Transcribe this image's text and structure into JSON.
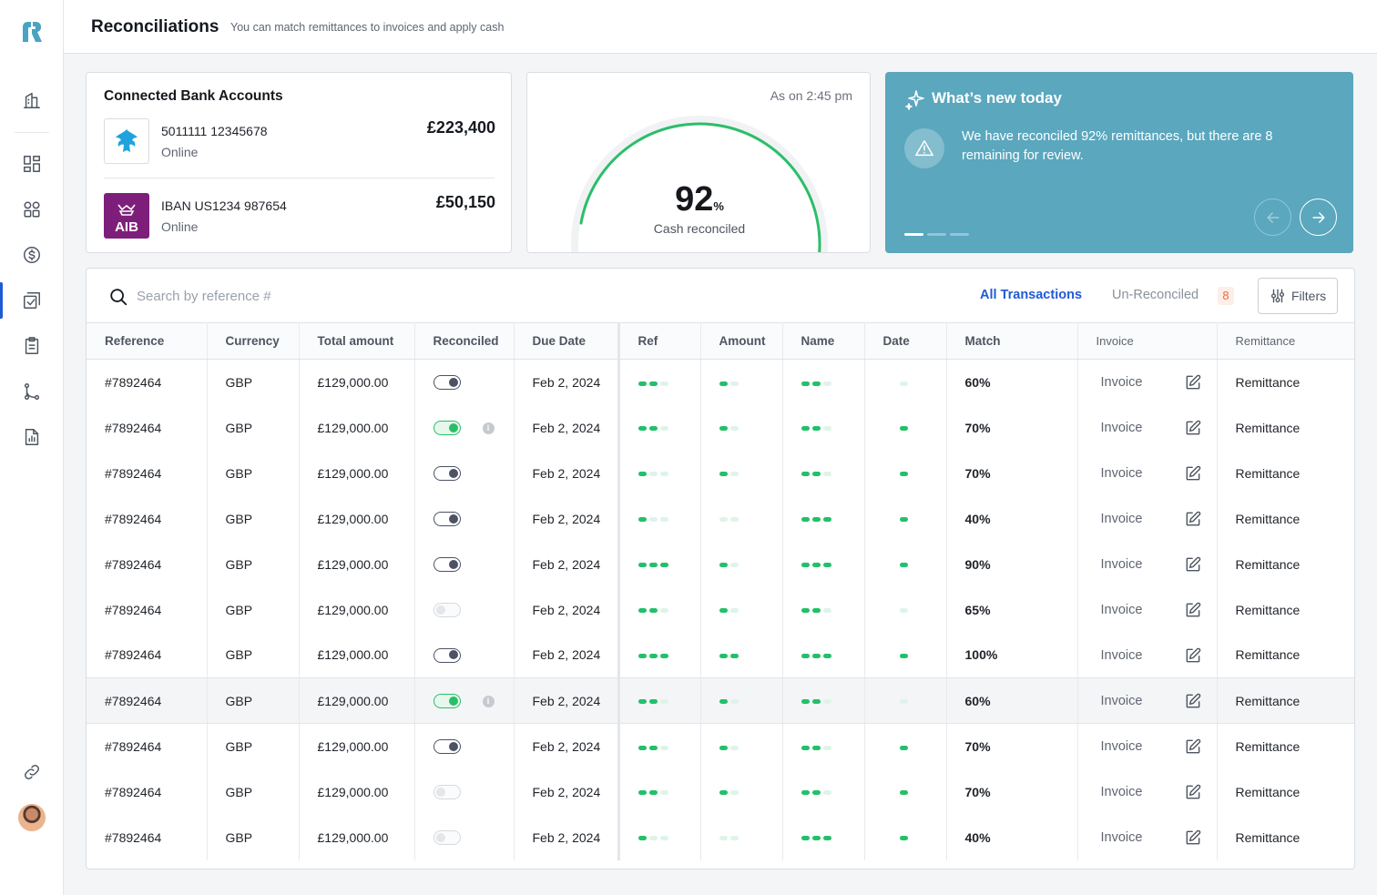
{
  "header": {
    "title": "Reconciliations",
    "subtitle": "You can match remittances to invoices and apply cash"
  },
  "sidebar": {
    "items": [
      {
        "icon": "building-icon",
        "active": false
      },
      {
        "icon": "dashboard-icon",
        "active": false
      },
      {
        "icon": "apps-icon",
        "active": false
      },
      {
        "icon": "dollar-circle-icon",
        "active": false
      },
      {
        "icon": "reconcile-icon",
        "active": true
      },
      {
        "icon": "clipboard-icon",
        "active": false
      },
      {
        "icon": "workflow-icon",
        "active": false
      },
      {
        "icon": "report-icon",
        "active": false
      },
      {
        "icon": "link-icon",
        "active": false
      }
    ]
  },
  "bank_accounts": {
    "title": "Connected Bank Accounts",
    "accounts": [
      {
        "logo": "barclays-logo",
        "number": "5011111 12345678",
        "status": "Online",
        "amount": "£223,400"
      },
      {
        "logo": "aib-logo",
        "logo_text": "AIB",
        "number": "IBAN US1234 987654",
        "status": "Online",
        "amount": "£50,150"
      }
    ]
  },
  "gauge": {
    "as_of": "As on 2:45 pm",
    "value": "92",
    "unit": "%",
    "label": "Cash reconciled",
    "fraction": 0.92,
    "color": "#2bbe69"
  },
  "news": {
    "title": "What’s new today",
    "text": "We have reconciled 92% remittances, but there are 8 remaining for review.",
    "slides": 3,
    "active_slide": 0,
    "background": "#5aa7be"
  },
  "table": {
    "search_placeholder": "Search by reference #",
    "tabs": {
      "all": "All Transactions",
      "unreconciled": "Un-Reconciled",
      "unreconciled_count": "8"
    },
    "filters_label": "Filters",
    "columns": [
      "Reference",
      "Currency",
      "Total amount",
      "Reconciled",
      "Due Date",
      "Ref",
      "Amount",
      "Name",
      "Date",
      "Match",
      "Invoice",
      "Remittance"
    ],
    "rows": [
      {
        "ref": "#7892464",
        "currency": "GBP",
        "total": "£129,000.00",
        "reconciled": "off",
        "info": false,
        "due": "Feb 2, 2024",
        "m_ref": [
          1,
          1,
          0
        ],
        "m_amount": [
          1,
          0
        ],
        "m_name": [
          1,
          1,
          0
        ],
        "m_date": [
          0
        ],
        "match": "60%",
        "invoice": "Invoice",
        "remittance": "Remittance",
        "highlight": false
      },
      {
        "ref": "#7892464",
        "currency": "GBP",
        "total": "£129,000.00",
        "reconciled": "on",
        "info": true,
        "due": "Feb 2, 2024",
        "m_ref": [
          1,
          1,
          0
        ],
        "m_amount": [
          1,
          0
        ],
        "m_name": [
          1,
          1,
          0
        ],
        "m_date": [
          1
        ],
        "match": "70%",
        "invoice": "Invoice",
        "remittance": "Remittance",
        "highlight": false
      },
      {
        "ref": "#7892464",
        "currency": "GBP",
        "total": "£129,000.00",
        "reconciled": "off",
        "info": false,
        "due": "Feb 2, 2024",
        "m_ref": [
          1,
          0,
          0
        ],
        "m_amount": [
          1,
          0
        ],
        "m_name": [
          1,
          1,
          0
        ],
        "m_date": [
          1
        ],
        "match": "70%",
        "invoice": "Invoice",
        "remittance": "Remittance",
        "highlight": false
      },
      {
        "ref": "#7892464",
        "currency": "GBP",
        "total": "£129,000.00",
        "reconciled": "off",
        "info": false,
        "due": "Feb 2, 2024",
        "m_ref": [
          1,
          0,
          0
        ],
        "m_amount": [
          0,
          0
        ],
        "m_name": [
          1,
          1,
          1
        ],
        "m_date": [
          1
        ],
        "match": "40%",
        "invoice": "Invoice",
        "remittance": "Remittance",
        "highlight": false
      },
      {
        "ref": "#7892464",
        "currency": "GBP",
        "total": "£129,000.00",
        "reconciled": "off",
        "info": false,
        "due": "Feb 2, 2024",
        "m_ref": [
          1,
          1,
          1
        ],
        "m_amount": [
          1,
          0
        ],
        "m_name": [
          1,
          1,
          1
        ],
        "m_date": [
          1
        ],
        "match": "90%",
        "invoice": "Invoice",
        "remittance": "Remittance",
        "highlight": false
      },
      {
        "ref": "#7892464",
        "currency": "GBP",
        "total": "£129,000.00",
        "reconciled": "disabled",
        "info": false,
        "due": "Feb 2, 2024",
        "m_ref": [
          1,
          1,
          0
        ],
        "m_amount": [
          1,
          0
        ],
        "m_name": [
          1,
          1,
          0
        ],
        "m_date": [
          0
        ],
        "match": "65%",
        "invoice": "Invoice",
        "remittance": "Remittance",
        "highlight": false
      },
      {
        "ref": "#7892464",
        "currency": "GBP",
        "total": "£129,000.00",
        "reconciled": "off",
        "info": false,
        "due": "Feb 2, 2024",
        "m_ref": [
          1,
          1,
          1
        ],
        "m_amount": [
          1,
          1
        ],
        "m_name": [
          1,
          1,
          1
        ],
        "m_date": [
          1
        ],
        "match": "100%",
        "invoice": "Invoice",
        "remittance": "Remittance",
        "highlight": false
      },
      {
        "ref": "#7892464",
        "currency": "GBP",
        "total": "£129,000.00",
        "reconciled": "on",
        "info": true,
        "due": "Feb 2, 2024",
        "m_ref": [
          1,
          1,
          0
        ],
        "m_amount": [
          1,
          0
        ],
        "m_name": [
          1,
          1,
          0
        ],
        "m_date": [
          0
        ],
        "match": "60%",
        "invoice": "Invoice",
        "remittance": "Remittance",
        "highlight": true
      },
      {
        "ref": "#7892464",
        "currency": "GBP",
        "total": "£129,000.00",
        "reconciled": "off",
        "info": false,
        "due": "Feb 2, 2024",
        "m_ref": [
          1,
          1,
          0
        ],
        "m_amount": [
          1,
          0
        ],
        "m_name": [
          1,
          1,
          0
        ],
        "m_date": [
          1
        ],
        "match": "70%",
        "invoice": "Invoice",
        "remittance": "Remittance",
        "highlight": false
      },
      {
        "ref": "#7892464",
        "currency": "GBP",
        "total": "£129,000.00",
        "reconciled": "disabled",
        "info": false,
        "due": "Feb 2, 2024",
        "m_ref": [
          1,
          1,
          0
        ],
        "m_amount": [
          1,
          0
        ],
        "m_name": [
          1,
          1,
          0
        ],
        "m_date": [
          1
        ],
        "match": "70%",
        "invoice": "Invoice",
        "remittance": "Remittance",
        "highlight": false
      },
      {
        "ref": "#7892464",
        "currency": "GBP",
        "total": "£129,000.00",
        "reconciled": "disabled",
        "info": false,
        "due": "Feb 2, 2024",
        "m_ref": [
          1,
          0,
          0
        ],
        "m_amount": [
          0,
          0
        ],
        "m_name": [
          1,
          1,
          1
        ],
        "m_date": [
          1
        ],
        "match": "40%",
        "invoice": "Invoice",
        "remittance": "Remittance",
        "highlight": false
      }
    ]
  }
}
